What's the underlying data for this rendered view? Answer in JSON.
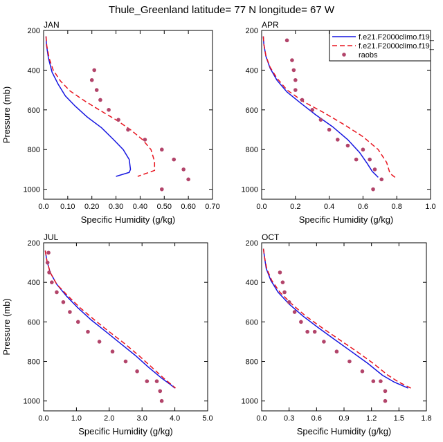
{
  "figure": {
    "title": "Thule_Greenland  latitude= 77 N longitude= 67 W"
  },
  "legend": {
    "placement": "top-right (APR panel)",
    "entries": [
      {
        "label": "f.e21.F2000climo.f19_",
        "color": "#1515e0",
        "style": "solid",
        "marker": "none"
      },
      {
        "label": "f.e21.F2000climo.f19_",
        "color": "#e8141e",
        "style": "dashed",
        "marker": "none"
      },
      {
        "label": "raobs",
        "color": "#b2446a",
        "style": "none",
        "marker": "dot"
      }
    ]
  },
  "chart_data": [
    {
      "type": "line",
      "panel": "JAN",
      "title": "JAN",
      "xlabel": "Specific Humidity (g/kg)",
      "ylabel": "Pressure (mb)",
      "xlim": [
        0,
        0.7
      ],
      "ylim": [
        200,
        1050
      ],
      "y_inverted": true,
      "xticks": [
        0,
        0.1,
        0.2,
        0.3,
        0.4,
        0.5,
        0.6,
        0.7
      ],
      "xtick_labels": [
        "0.0",
        "0.10",
        "0.20",
        "0.30",
        "0.40",
        "0.50",
        "0.60",
        "0.70"
      ],
      "yticks": [
        200,
        400,
        600,
        800,
        1000
      ],
      "ytick_labels": [
        "200",
        "400",
        "600",
        "800",
        "1000"
      ],
      "series": [
        {
          "name": "f.e21.F2000climo.f19_",
          "color": "#1515e0",
          "dash": "",
          "x": [
            0.01,
            0.012,
            0.02,
            0.035,
            0.06,
            0.09,
            0.13,
            0.18,
            0.24,
            0.29,
            0.33,
            0.355,
            0.36,
            0.355,
            0.3
          ],
          "y": [
            230,
            275,
            340,
            410,
            470,
            530,
            580,
            635,
            690,
            750,
            800,
            850,
            900,
            915,
            935
          ]
        },
        {
          "name": "f.e21.F2000climo.f19_",
          "color": "#e8141e",
          "dash": "7,4",
          "x": [
            0.01,
            0.013,
            0.023,
            0.04,
            0.07,
            0.11,
            0.17,
            0.23,
            0.3,
            0.36,
            0.41,
            0.445,
            0.46,
            0.46,
            0.39
          ],
          "y": [
            230,
            275,
            340,
            400,
            455,
            505,
            555,
            600,
            650,
            700,
            750,
            800,
            860,
            905,
            935
          ]
        }
      ],
      "points": {
        "name": "raobs",
        "color": "#b2446a",
        "x": [
          0.21,
          0.2,
          0.22,
          0.235,
          0.27,
          0.31,
          0.35,
          0.42,
          0.49,
          0.54,
          0.58,
          0.6,
          0.49
        ],
        "y": [
          400,
          450,
          500,
          550,
          600,
          650,
          700,
          750,
          800,
          850,
          900,
          950,
          1000
        ]
      }
    },
    {
      "type": "line",
      "panel": "APR",
      "title": "APR",
      "xlabel": "Specific Humidity (g/kg)",
      "ylabel": "",
      "xlim": [
        0,
        1.0
      ],
      "ylim": [
        200,
        1050
      ],
      "y_inverted": true,
      "xticks": [
        0,
        0.2,
        0.4,
        0.6,
        0.8,
        1.0
      ],
      "xtick_labels": [
        "0.0",
        "0.2",
        "0.4",
        "0.6",
        "0.8",
        "1.0"
      ],
      "yticks": [
        200,
        400,
        600,
        800,
        1000
      ],
      "ytick_labels": [
        "200",
        "400",
        "600",
        "800",
        "1000"
      ],
      "series": [
        {
          "name": "f.e21.F2000climo.f19_",
          "color": "#1515e0",
          "dash": "",
          "x": [
            0.01,
            0.013,
            0.025,
            0.05,
            0.09,
            0.15,
            0.23,
            0.32,
            0.42,
            0.51,
            0.58,
            0.625,
            0.655,
            0.69
          ],
          "y": [
            230,
            270,
            330,
            390,
            450,
            510,
            565,
            625,
            685,
            750,
            815,
            870,
            910,
            940
          ]
        },
        {
          "name": "f.e21.F2000climo.f19_",
          "color": "#e8141e",
          "dash": "7,4",
          "x": [
            0.01,
            0.013,
            0.026,
            0.05,
            0.09,
            0.15,
            0.25,
            0.37,
            0.49,
            0.6,
            0.69,
            0.74,
            0.76,
            0.79
          ],
          "y": [
            230,
            270,
            330,
            385,
            440,
            500,
            560,
            615,
            675,
            735,
            800,
            865,
            920,
            940
          ]
        }
      ],
      "points": {
        "name": "raobs",
        "color": "#b2446a",
        "x": [
          0.15,
          0.18,
          0.19,
          0.2,
          0.2,
          0.24,
          0.3,
          0.35,
          0.4,
          0.45,
          0.51,
          0.56,
          0.6,
          0.64,
          0.67,
          0.71,
          0.66
        ],
        "y": [
          250,
          350,
          400,
          450,
          500,
          550,
          600,
          650,
          700,
          750,
          780,
          850,
          800,
          850,
          900,
          950,
          1000
        ]
      }
    },
    {
      "type": "line",
      "panel": "JUL",
      "title": "JUL",
      "xlabel": "Specific Humidity (g/kg)",
      "ylabel": "Pressure (mb)",
      "xlim": [
        0,
        5.0
      ],
      "ylim": [
        200,
        1050
      ],
      "y_inverted": true,
      "xticks": [
        0,
        1,
        2,
        3,
        4,
        5
      ],
      "xtick_labels": [
        "0.0",
        "1.0",
        "2.0",
        "3.0",
        "4.0",
        "5.0"
      ],
      "yticks": [
        200,
        400,
        600,
        800,
        1000
      ],
      "ytick_labels": [
        "200",
        "400",
        "600",
        "800",
        "1000"
      ],
      "series": [
        {
          "name": "f.e21.F2000climo.f19_",
          "color": "#1515e0",
          "dash": "",
          "x": [
            0.05,
            0.1,
            0.2,
            0.4,
            0.7,
            1.05,
            1.45,
            1.9,
            2.35,
            2.8,
            3.2,
            3.6,
            3.85,
            4.0
          ],
          "y": [
            240,
            290,
            350,
            410,
            470,
            530,
            590,
            650,
            710,
            770,
            830,
            885,
            915,
            935
          ]
        },
        {
          "name": "f.e21.F2000climo.f19_",
          "color": "#e8141e",
          "dash": "7,4",
          "x": [
            0.05,
            0.1,
            0.2,
            0.4,
            0.75,
            1.12,
            1.55,
            2.0,
            2.47,
            2.9,
            3.3,
            3.66,
            3.88,
            4.02
          ],
          "y": [
            240,
            290,
            350,
            410,
            470,
            530,
            590,
            650,
            710,
            770,
            830,
            885,
            915,
            935
          ]
        }
      ],
      "points": {
        "name": "raobs",
        "color": "#b2446a",
        "x": [
          0.15,
          0.12,
          0.17,
          0.25,
          0.4,
          0.6,
          0.8,
          1.05,
          1.35,
          1.7,
          2.1,
          2.5,
          2.85,
          3.15,
          3.45,
          3.55,
          3.6
        ],
        "y": [
          250,
          300,
          350,
          400,
          450,
          500,
          550,
          600,
          650,
          700,
          750,
          800,
          850,
          900,
          900,
          950,
          1000
        ]
      }
    },
    {
      "type": "line",
      "panel": "OCT",
      "title": "OCT",
      "xlabel": "Specific Humidity (g/kg)",
      "ylabel": "",
      "xlim": [
        0,
        1.8
      ],
      "ylim": [
        200,
        1050
      ],
      "y_inverted": true,
      "xticks": [
        0,
        0.3,
        0.6,
        0.9,
        1.2,
        1.5,
        1.8
      ],
      "xtick_labels": [
        "0.0",
        "0.3",
        "0.6",
        "0.9",
        "1.2",
        "1.5",
        "1.8"
      ],
      "yticks": [
        200,
        400,
        600,
        800,
        1000
      ],
      "ytick_labels": [
        "200",
        "400",
        "600",
        "800",
        "1000"
      ],
      "series": [
        {
          "name": "f.e21.F2000climo.f19_",
          "color": "#1515e0",
          "dash": "",
          "x": [
            0.02,
            0.03,
            0.05,
            0.1,
            0.18,
            0.3,
            0.45,
            0.62,
            0.8,
            0.98,
            1.16,
            1.32,
            1.45,
            1.6
          ],
          "y": [
            230,
            270,
            330,
            390,
            450,
            510,
            570,
            630,
            690,
            750,
            810,
            870,
            905,
            935
          ]
        },
        {
          "name": "f.e21.F2000climo.f19_",
          "color": "#e8141e",
          "dash": "7,4",
          "x": [
            0.02,
            0.03,
            0.055,
            0.11,
            0.2,
            0.33,
            0.48,
            0.66,
            0.85,
            1.04,
            1.22,
            1.38,
            1.5,
            1.63
          ],
          "y": [
            230,
            270,
            330,
            390,
            450,
            510,
            570,
            630,
            690,
            750,
            810,
            870,
            905,
            935
          ]
        }
      ],
      "points": {
        "name": "raobs",
        "color": "#b2446a",
        "x": [
          0.2,
          0.23,
          0.25,
          0.3,
          0.36,
          0.43,
          0.5,
          0.58,
          0.68,
          0.82,
          0.96,
          1.1,
          1.22,
          1.3,
          1.35,
          1.35
        ],
        "y": [
          350,
          400,
          450,
          500,
          550,
          600,
          650,
          650,
          700,
          750,
          800,
          850,
          900,
          900,
          950,
          1000
        ]
      }
    }
  ]
}
